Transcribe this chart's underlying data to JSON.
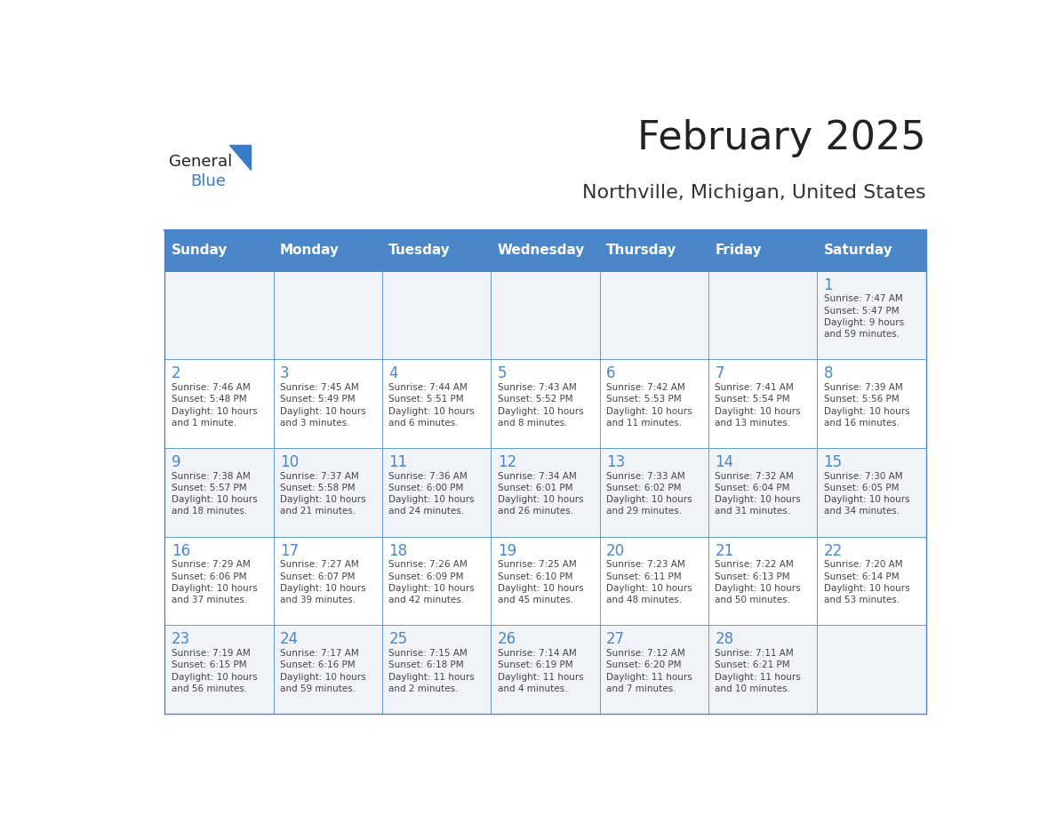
{
  "title": "February 2025",
  "subtitle": "Northville, Michigan, United States",
  "days_of_week": [
    "Sunday",
    "Monday",
    "Tuesday",
    "Wednesday",
    "Thursday",
    "Friday",
    "Saturday"
  ],
  "header_bg": "#4a86c8",
  "header_text": "#ffffff",
  "cell_bg_light": "#f0f4f8",
  "cell_bg_white": "#ffffff",
  "border_color": "#4a86c8",
  "day_num_color": "#4a86c8",
  "text_color": "#444444",
  "title_color": "#222222",
  "subtitle_color": "#333333",
  "logo_general_color": "#222222",
  "logo_blue_color": "#3a7bc8",
  "calendar_data": [
    [
      {
        "day": null,
        "info": ""
      },
      {
        "day": null,
        "info": ""
      },
      {
        "day": null,
        "info": ""
      },
      {
        "day": null,
        "info": ""
      },
      {
        "day": null,
        "info": ""
      },
      {
        "day": null,
        "info": ""
      },
      {
        "day": 1,
        "info": "Sunrise: 7:47 AM\nSunset: 5:47 PM\nDaylight: 9 hours\nand 59 minutes."
      }
    ],
    [
      {
        "day": 2,
        "info": "Sunrise: 7:46 AM\nSunset: 5:48 PM\nDaylight: 10 hours\nand 1 minute."
      },
      {
        "day": 3,
        "info": "Sunrise: 7:45 AM\nSunset: 5:49 PM\nDaylight: 10 hours\nand 3 minutes."
      },
      {
        "day": 4,
        "info": "Sunrise: 7:44 AM\nSunset: 5:51 PM\nDaylight: 10 hours\nand 6 minutes."
      },
      {
        "day": 5,
        "info": "Sunrise: 7:43 AM\nSunset: 5:52 PM\nDaylight: 10 hours\nand 8 minutes."
      },
      {
        "day": 6,
        "info": "Sunrise: 7:42 AM\nSunset: 5:53 PM\nDaylight: 10 hours\nand 11 minutes."
      },
      {
        "day": 7,
        "info": "Sunrise: 7:41 AM\nSunset: 5:54 PM\nDaylight: 10 hours\nand 13 minutes."
      },
      {
        "day": 8,
        "info": "Sunrise: 7:39 AM\nSunset: 5:56 PM\nDaylight: 10 hours\nand 16 minutes."
      }
    ],
    [
      {
        "day": 9,
        "info": "Sunrise: 7:38 AM\nSunset: 5:57 PM\nDaylight: 10 hours\nand 18 minutes."
      },
      {
        "day": 10,
        "info": "Sunrise: 7:37 AM\nSunset: 5:58 PM\nDaylight: 10 hours\nand 21 minutes."
      },
      {
        "day": 11,
        "info": "Sunrise: 7:36 AM\nSunset: 6:00 PM\nDaylight: 10 hours\nand 24 minutes."
      },
      {
        "day": 12,
        "info": "Sunrise: 7:34 AM\nSunset: 6:01 PM\nDaylight: 10 hours\nand 26 minutes."
      },
      {
        "day": 13,
        "info": "Sunrise: 7:33 AM\nSunset: 6:02 PM\nDaylight: 10 hours\nand 29 minutes."
      },
      {
        "day": 14,
        "info": "Sunrise: 7:32 AM\nSunset: 6:04 PM\nDaylight: 10 hours\nand 31 minutes."
      },
      {
        "day": 15,
        "info": "Sunrise: 7:30 AM\nSunset: 6:05 PM\nDaylight: 10 hours\nand 34 minutes."
      }
    ],
    [
      {
        "day": 16,
        "info": "Sunrise: 7:29 AM\nSunset: 6:06 PM\nDaylight: 10 hours\nand 37 minutes."
      },
      {
        "day": 17,
        "info": "Sunrise: 7:27 AM\nSunset: 6:07 PM\nDaylight: 10 hours\nand 39 minutes."
      },
      {
        "day": 18,
        "info": "Sunrise: 7:26 AM\nSunset: 6:09 PM\nDaylight: 10 hours\nand 42 minutes."
      },
      {
        "day": 19,
        "info": "Sunrise: 7:25 AM\nSunset: 6:10 PM\nDaylight: 10 hours\nand 45 minutes."
      },
      {
        "day": 20,
        "info": "Sunrise: 7:23 AM\nSunset: 6:11 PM\nDaylight: 10 hours\nand 48 minutes."
      },
      {
        "day": 21,
        "info": "Sunrise: 7:22 AM\nSunset: 6:13 PM\nDaylight: 10 hours\nand 50 minutes."
      },
      {
        "day": 22,
        "info": "Sunrise: 7:20 AM\nSunset: 6:14 PM\nDaylight: 10 hours\nand 53 minutes."
      }
    ],
    [
      {
        "day": 23,
        "info": "Sunrise: 7:19 AM\nSunset: 6:15 PM\nDaylight: 10 hours\nand 56 minutes."
      },
      {
        "day": 24,
        "info": "Sunrise: 7:17 AM\nSunset: 6:16 PM\nDaylight: 10 hours\nand 59 minutes."
      },
      {
        "day": 25,
        "info": "Sunrise: 7:15 AM\nSunset: 6:18 PM\nDaylight: 11 hours\nand 2 minutes."
      },
      {
        "day": 26,
        "info": "Sunrise: 7:14 AM\nSunset: 6:19 PM\nDaylight: 11 hours\nand 4 minutes."
      },
      {
        "day": 27,
        "info": "Sunrise: 7:12 AM\nSunset: 6:20 PM\nDaylight: 11 hours\nand 7 minutes."
      },
      {
        "day": 28,
        "info": "Sunrise: 7:11 AM\nSunset: 6:21 PM\nDaylight: 11 hours\nand 10 minutes."
      },
      {
        "day": null,
        "info": ""
      }
    ]
  ]
}
